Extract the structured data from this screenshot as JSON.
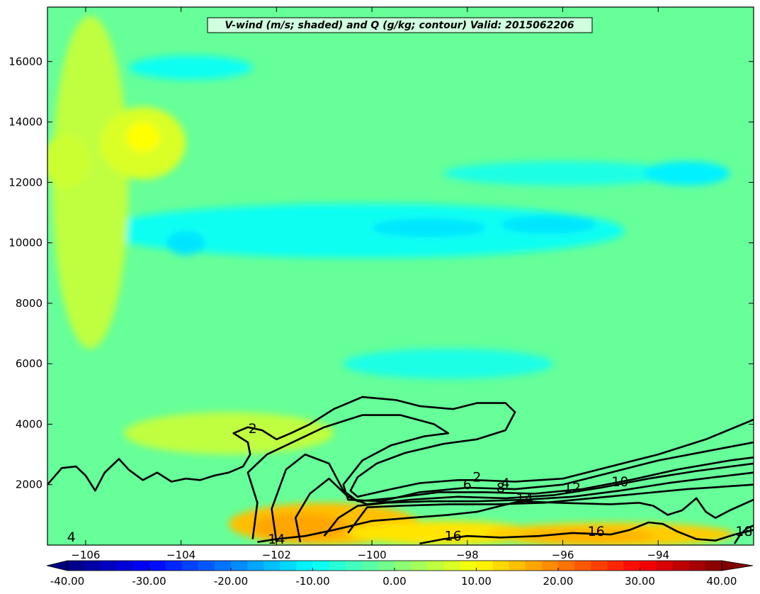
{
  "chart_data": {
    "type": "heatmap",
    "title": "V-wind (m/s; shaded) and Q (g/kg; contour) Valid: 2015062206",
    "xlabel": "",
    "ylabel": "",
    "xlim": [
      -106.8,
      -92.0
    ],
    "ylim": [
      0,
      17800
    ],
    "x_ticks": [
      -106,
      -104,
      -102,
      -100,
      -98,
      -96,
      -94
    ],
    "x_tick_labels": [
      "−106",
      "−104",
      "−102",
      "−100",
      "−98",
      "−96",
      "−94"
    ],
    "y_ticks": [
      2000,
      4000,
      6000,
      8000,
      10000,
      12000,
      14000,
      16000
    ],
    "y_tick_labels": [
      "2000",
      "4000",
      "6000",
      "8000",
      "10000",
      "12000",
      "14000",
      "16000"
    ],
    "shaded_field": {
      "name": "V-wind",
      "units": "m/s",
      "colorbar": {
        "range": [
          -40,
          40
        ],
        "ticks": [
          -40,
          -30,
          -20,
          -10,
          0,
          10,
          20,
          30,
          40
        ],
        "tick_labels": [
          "-40.00",
          "-30.00",
          "-20.00",
          "-10.00",
          "0.00",
          "10.00",
          "20.00",
          "30.00",
          "40.00"
        ],
        "colormap": "jet",
        "extend": "both"
      },
      "background_value": -2,
      "features": [
        {
          "x": -100.2,
          "y": 10400,
          "rx": 5.5,
          "ry": 900,
          "value": -9
        },
        {
          "x": -98.8,
          "y": 10500,
          "rx": 1.2,
          "ry": 300,
          "value": -12
        },
        {
          "x": -96.3,
          "y": 10600,
          "rx": 1.0,
          "ry": 300,
          "value": -12
        },
        {
          "x": -103.9,
          "y": 10000,
          "rx": 0.4,
          "ry": 400,
          "value": -12
        },
        {
          "x": -96.0,
          "y": 12300,
          "rx": 2.5,
          "ry": 400,
          "value": -8
        },
        {
          "x": -93.4,
          "y": 12300,
          "rx": 0.9,
          "ry": 400,
          "value": -11
        },
        {
          "x": -103.8,
          "y": 15800,
          "rx": 1.3,
          "ry": 400,
          "value": -9
        },
        {
          "x": -98.4,
          "y": 6000,
          "rx": 2.2,
          "ry": 500,
          "value": -8
        },
        {
          "x": -105.9,
          "y": 12000,
          "rx": 0.8,
          "ry": 5500,
          "value": 5
        },
        {
          "x": -104.8,
          "y": 13300,
          "rx": 0.9,
          "ry": 1200,
          "value": 7
        },
        {
          "x": -104.8,
          "y": 13500,
          "rx": 0.35,
          "ry": 500,
          "value": 10
        },
        {
          "x": -106.4,
          "y": 12700,
          "rx": 0.5,
          "ry": 900,
          "value": 6
        },
        {
          "x": -103.0,
          "y": 3700,
          "rx": 2.2,
          "ry": 700,
          "value": 5
        },
        {
          "x": -101.0,
          "y": 700,
          "rx": 2.0,
          "ry": 700,
          "value": 15
        },
        {
          "x": -101.5,
          "y": 600,
          "rx": 1.0,
          "ry": 450,
          "value": 17
        },
        {
          "x": -98.5,
          "y": 400,
          "rx": 2.0,
          "ry": 400,
          "value": 12
        },
        {
          "x": -95.0,
          "y": 350,
          "rx": 2.6,
          "ry": 400,
          "value": 14
        },
        {
          "x": -95.5,
          "y": 300,
          "rx": 1.4,
          "ry": 250,
          "value": 16
        }
      ]
    },
    "contour_field": {
      "name": "Q",
      "units": "g/kg",
      "levels": [
        2,
        4,
        6,
        8,
        10,
        12,
        14,
        16,
        18
      ],
      "lines": [
        {
          "level": 2,
          "points": [
            [
              -106.8,
              2000
            ],
            [
              -106.5,
              2550
            ],
            [
              -106.2,
              2600
            ],
            [
              -106.0,
              2300
            ],
            [
              -105.8,
              1800
            ],
            [
              -105.6,
              2400
            ],
            [
              -105.3,
              2850
            ],
            [
              -105.1,
              2500
            ],
            [
              -104.8,
              2150
            ],
            [
              -104.5,
              2400
            ],
            [
              -104.2,
              2100
            ],
            [
              -103.9,
              2200
            ],
            [
              -103.6,
              2150
            ],
            [
              -103.3,
              2300
            ],
            [
              -103.0,
              2400
            ],
            [
              -102.7,
              2600
            ],
            [
              -102.55,
              3000
            ],
            [
              -102.6,
              3400
            ],
            [
              -102.9,
              3700
            ],
            [
              -102.6,
              3900
            ],
            [
              -102.3,
              3800
            ],
            [
              -102.0,
              3500
            ],
            [
              -101.7,
              3700
            ],
            [
              -101.3,
              4000
            ],
            [
              -100.8,
              4500
            ],
            [
              -100.2,
              4900
            ],
            [
              -99.5,
              4800
            ],
            [
              -99.0,
              4600
            ],
            [
              -98.3,
              4500
            ],
            [
              -97.8,
              4700
            ],
            [
              -97.2,
              4700
            ],
            [
              -97.0,
              4400
            ],
            [
              -97.2,
              3800
            ],
            [
              -97.8,
              3500
            ],
            [
              -98.5,
              3350
            ],
            [
              -99.3,
              3050
            ],
            [
              -99.9,
              2700
            ],
            [
              -100.3,
              2250
            ],
            [
              -100.45,
              1800
            ],
            [
              -100.3,
              1600
            ],
            [
              -99.6,
              1850
            ],
            [
              -99.0,
              2050
            ],
            [
              -98.2,
              2150
            ],
            [
              -97.8,
              2150
            ],
            [
              -97.0,
              2100
            ],
            [
              -96.0,
              2200
            ],
            [
              -95.0,
              2600
            ],
            [
              -94.0,
              3000
            ],
            [
              -93.0,
              3500
            ],
            [
              -92.0,
              4150
            ]
          ]
        },
        {
          "level": 4,
          "points": [
            [
              -102.5,
              200
            ],
            [
              -102.4,
              1400
            ],
            [
              -102.6,
              2400
            ],
            [
              -102.2,
              3000
            ],
            [
              -101.6,
              3450
            ],
            [
              -101.0,
              3900
            ],
            [
              -100.2,
              4300
            ],
            [
              -99.4,
              4300
            ],
            [
              -98.7,
              4000
            ],
            [
              -98.4,
              3700
            ],
            [
              -98.9,
              3600
            ],
            [
              -99.6,
              3300
            ],
            [
              -100.2,
              2800
            ],
            [
              -100.6,
              2000
            ],
            [
              -100.5,
              1500
            ],
            [
              -99.8,
              1450
            ],
            [
              -99.0,
              1750
            ],
            [
              -98.0,
              1900
            ],
            [
              -97.0,
              1850
            ],
            [
              -96.0,
              2000
            ],
            [
              -95.0,
              2400
            ],
            [
              -94.0,
              2800
            ],
            [
              -93.0,
              3100
            ],
            [
              -92.0,
              3400
            ]
          ]
        },
        {
          "level": 6,
          "points": [
            [
              -102.0,
              100
            ],
            [
              -102.1,
              1200
            ],
            [
              -101.8,
              2500
            ],
            [
              -101.4,
              3000
            ],
            [
              -100.9,
              2700
            ],
            [
              -100.6,
              1800
            ],
            [
              -100.3,
              1450
            ],
            [
              -99.6,
              1550
            ],
            [
              -98.6,
              1750
            ],
            [
              -97.6,
              1750
            ],
            [
              -96.6,
              1700
            ],
            [
              -95.6,
              1850
            ],
            [
              -94.6,
              2150
            ],
            [
              -93.6,
              2500
            ],
            [
              -92.5,
              2800
            ],
            [
              -92.0,
              2900
            ]
          ]
        },
        {
          "level": 8,
          "points": [
            [
              -101.5,
              100
            ],
            [
              -101.6,
              900
            ],
            [
              -101.3,
              1700
            ],
            [
              -100.9,
              2200
            ],
            [
              -100.5,
              1600
            ],
            [
              -100.1,
              1350
            ],
            [
              -99.2,
              1500
            ],
            [
              -98.2,
              1600
            ],
            [
              -97.2,
              1550
            ],
            [
              -96.2,
              1650
            ],
            [
              -95.2,
              1900
            ],
            [
              -94.2,
              2200
            ],
            [
              -93.2,
              2450
            ],
            [
              -92.0,
              2700
            ]
          ]
        },
        {
          "level": 10,
          "points": [
            [
              -101.0,
              300
            ],
            [
              -100.7,
              900
            ],
            [
              -100.3,
              1300
            ],
            [
              -99.7,
              1400
            ],
            [
              -98.8,
              1450
            ],
            [
              -97.8,
              1450
            ],
            [
              -96.8,
              1500
            ],
            [
              -95.8,
              1600
            ],
            [
              -94.8,
              1800
            ],
            [
              -93.8,
              2050
            ],
            [
              -92.8,
              2250
            ],
            [
              -92.0,
              2400
            ]
          ]
        },
        {
          "level": 12,
          "points": [
            [
              -100.5,
              400
            ],
            [
              -100.1,
              1250
            ],
            [
              -99.4,
              1300
            ],
            [
              -98.4,
              1350
            ],
            [
              -97.4,
              1350
            ],
            [
              -96.4,
              1400
            ],
            [
              -95.4,
              1550
            ],
            [
              -94.4,
              1700
            ],
            [
              -93.4,
              1850
            ],
            [
              -92.0,
              2000
            ]
          ]
        },
        {
          "level": 14,
          "points": [
            [
              -102.4,
              100
            ],
            [
              -102.0,
              200
            ],
            [
              -101.4,
              300
            ],
            [
              -100.8,
              500
            ],
            [
              -100.0,
              800
            ],
            [
              -99.2,
              900
            ],
            [
              -98.4,
              1000
            ],
            [
              -97.8,
              1100
            ],
            [
              -97.3,
              1300
            ],
            [
              -96.9,
              1450
            ],
            [
              -96.1,
              1400
            ],
            [
              -95.0,
              1350
            ],
            [
              -94.4,
              1400
            ],
            [
              -94.1,
              1300
            ],
            [
              -93.8,
              1000
            ],
            [
              -93.5,
              1150
            ],
            [
              -93.2,
              1550
            ],
            [
              -93.0,
              1100
            ],
            [
              -92.8,
              900
            ],
            [
              -92.5,
              1150
            ],
            [
              -92.0,
              1500
            ]
          ]
        },
        {
          "level": 16,
          "points": [
            [
              -99.0,
              50
            ],
            [
              -98.5,
              200
            ],
            [
              -98.0,
              300
            ],
            [
              -97.3,
              250
            ],
            [
              -96.5,
              300
            ],
            [
              -95.8,
              400
            ],
            [
              -95.0,
              350
            ],
            [
              -94.6,
              500
            ],
            [
              -94.2,
              750
            ],
            [
              -93.9,
              700
            ],
            [
              -93.6,
              450
            ],
            [
              -93.2,
              200
            ],
            [
              -92.8,
              150
            ],
            [
              -92.4,
              350
            ],
            [
              -92.0,
              500
            ]
          ]
        },
        {
          "level": 18,
          "points": [
            [
              -92.4,
              50
            ],
            [
              -92.3,
              300
            ],
            [
              -92.15,
              550
            ],
            [
              -92.0,
              650
            ]
          ]
        }
      ],
      "labels": [
        {
          "text": "2",
          "x": -97.8,
          "y": 2100
        },
        {
          "text": "4",
          "x": -97.2,
          "y": 1900
        },
        {
          "text": "6",
          "x": -98.0,
          "y": 1850
        },
        {
          "text": "8",
          "x": -97.3,
          "y": 1750
        },
        {
          "text": "10",
          "x": -94.8,
          "y": 1950
        },
        {
          "text": "12",
          "x": -95.8,
          "y": 1750
        },
        {
          "text": "14",
          "x": -96.8,
          "y": 1400
        },
        {
          "text": "14",
          "x": -102.0,
          "y": 50
        },
        {
          "text": "16",
          "x": -98.3,
          "y": 150
        },
        {
          "text": "16",
          "x": -95.3,
          "y": 300
        },
        {
          "text": "18",
          "x": -92.2,
          "y": 300
        },
        {
          "text": "4",
          "x": -106.3,
          "y": 120
        },
        {
          "text": "2",
          "x": -102.5,
          "y": 3700
        }
      ]
    }
  }
}
